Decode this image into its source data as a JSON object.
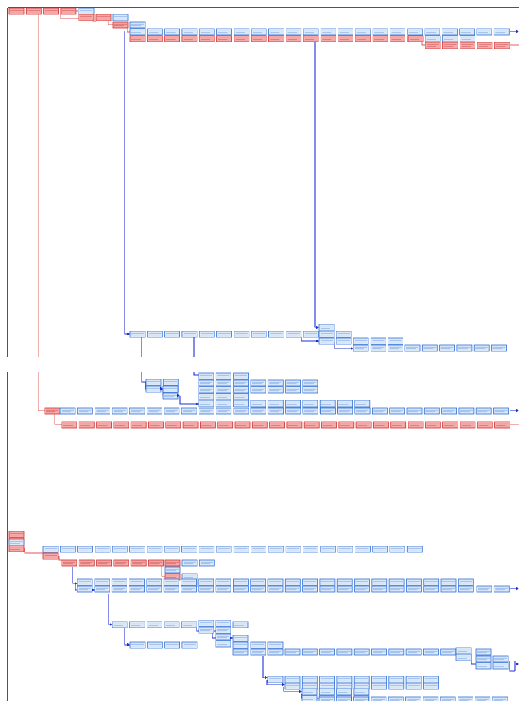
{
  "diagram": {
    "type": "task-network",
    "colors": {
      "task": "#dbe8f7",
      "task_border": "#2f6fd6",
      "critical_task": "#f5a9a9",
      "critical_border": "#d03030",
      "connector": "#1f2fd0",
      "critical_connector": "#e05050",
      "frame": "#1a1a1a"
    }
  }
}
